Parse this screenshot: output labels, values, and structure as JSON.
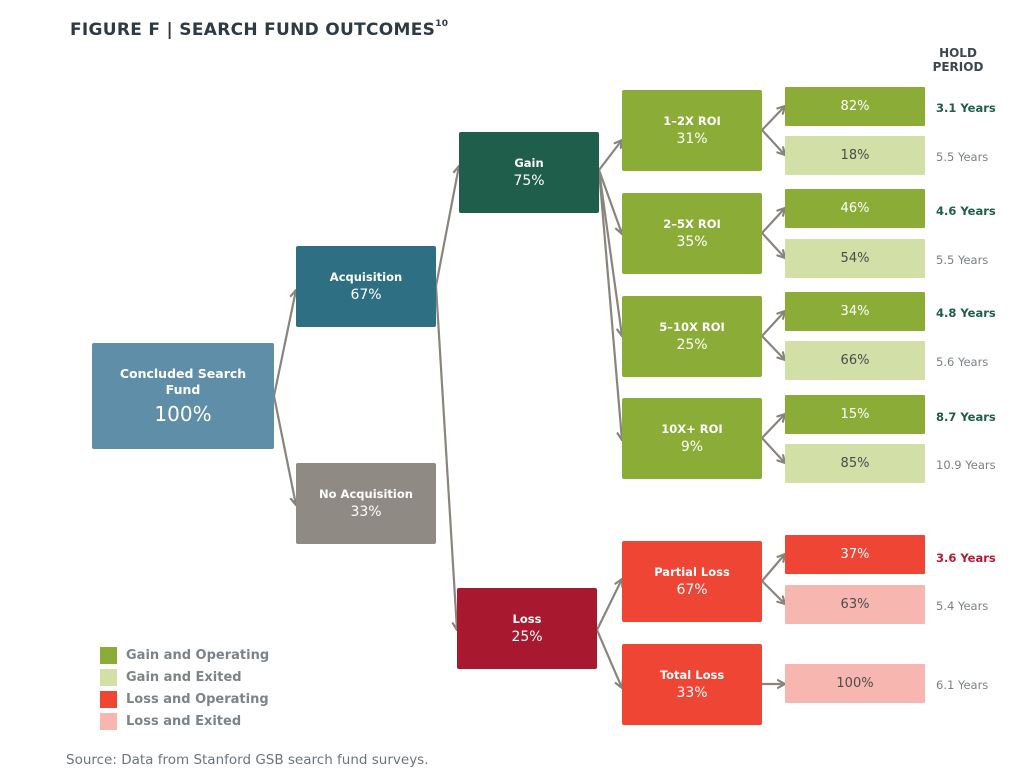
{
  "title": {
    "main": "FIGURE F | SEARCH FUND OUTCOMES",
    "superscript": "10"
  },
  "hold_period_header": [
    "HOLD",
    "PERIOD"
  ],
  "colors": {
    "root": "#5f8ea8",
    "acquisition": "#2e6f83",
    "no_acquisition": "#908a84",
    "gain": "#1f5e4a",
    "loss": "#a8182e",
    "gain_operating": "#8bad37",
    "gain_exited": "#d2e0a8",
    "loss_operating": "#ef4534",
    "loss_exited": "#f7b7b0",
    "connector": "#8a847e",
    "hold_gain_bold": "#1f5e4a",
    "hold_loss_bold": "#b01c33",
    "hold_regular": "#7b8287"
  },
  "tree": {
    "root": {
      "label": "Concluded Search Fund",
      "pct": "100%"
    },
    "acquisition": {
      "label": "Acquisition",
      "pct": "67%"
    },
    "no_acquisition": {
      "label": "No Acquisition",
      "pct": "33%"
    },
    "gain": {
      "label": "Gain",
      "pct": "75%"
    },
    "loss": {
      "label": "Loss",
      "pct": "25%"
    },
    "gain_branches": [
      {
        "label": "1–2X ROI",
        "pct": "31%"
      },
      {
        "label": "2–5X ROI",
        "pct": "35%"
      },
      {
        "label": "5–10X ROI",
        "pct": "25%"
      },
      {
        "label": "10X+ ROI",
        "pct": "9%"
      }
    ],
    "loss_branches": [
      {
        "label": "Partial Loss",
        "pct": "67%"
      },
      {
        "label": "Total Loss",
        "pct": "33%"
      }
    ]
  },
  "outcomes": [
    {
      "pct": "82%",
      "type": "gain_operating",
      "hold": "3.1 Years"
    },
    {
      "pct": "18%",
      "type": "gain_exited",
      "hold": "5.5 Years"
    },
    {
      "pct": "46%",
      "type": "gain_operating",
      "hold": "4.6 Years"
    },
    {
      "pct": "54%",
      "type": "gain_exited",
      "hold": "5.5 Years"
    },
    {
      "pct": "34%",
      "type": "gain_operating",
      "hold": "4.8 Years"
    },
    {
      "pct": "66%",
      "type": "gain_exited",
      "hold": "5.6 Years"
    },
    {
      "pct": "15%",
      "type": "gain_operating",
      "hold": "8.7 Years"
    },
    {
      "pct": "85%",
      "type": "gain_exited",
      "hold": "10.9 Years"
    },
    {
      "pct": "37%",
      "type": "loss_operating",
      "hold": "3.6 Years"
    },
    {
      "pct": "63%",
      "type": "loss_exited",
      "hold": "5.4 Years"
    },
    {
      "pct": "100%",
      "type": "loss_exited",
      "hold": "6.1 Years"
    }
  ],
  "legend": [
    {
      "label": "Gain and Operating",
      "color": "#8bad37"
    },
    {
      "label": "Gain and Exited",
      "color": "#d2e0a8"
    },
    {
      "label": "Loss and Operating",
      "color": "#ef4534"
    },
    {
      "label": "Loss and Exited",
      "color": "#f7b7b0"
    }
  ],
  "source": "Source: Data from Stanford GSB search fund surveys."
}
